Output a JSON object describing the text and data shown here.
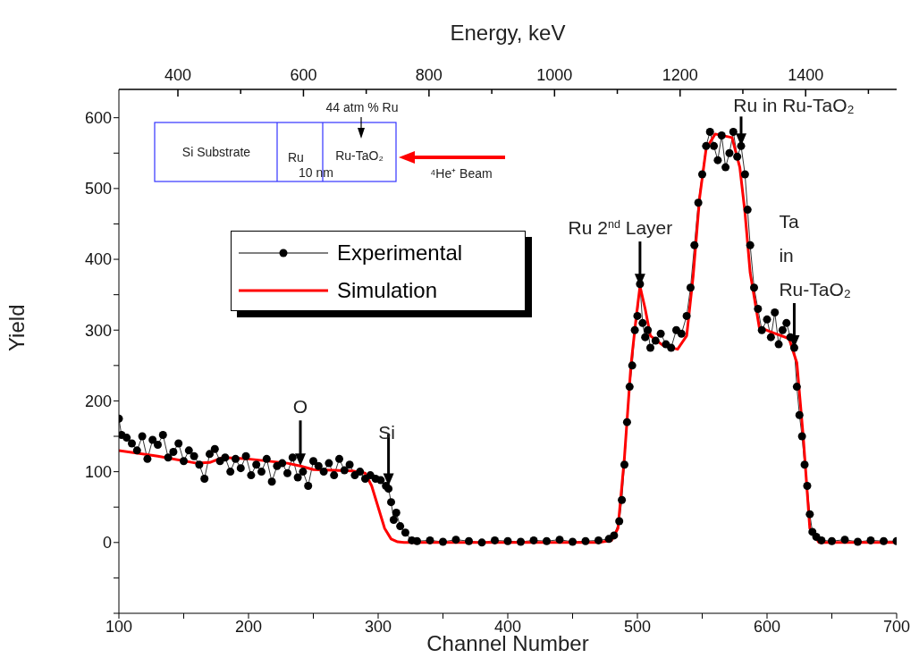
{
  "chart_data": {
    "type": "line",
    "xlabel": "Channel Number",
    "ylabel": "Yield",
    "x2label": "Energy, keV",
    "xlim": [
      100,
      700
    ],
    "xticks": [
      100,
      {
        "value": 150,
        "label": null
      },
      200,
      {
        "value": 250,
        "label": null
      },
      300,
      {
        "value": 350,
        "label": null
      },
      400,
      {
        "value": 450,
        "label": null
      },
      500,
      {
        "value": 550,
        "label": null
      },
      600,
      {
        "value": 650,
        "label": null
      },
      700
    ],
    "ylim": [
      -100,
      640
    ],
    "yticks": [
      {
        "value": -100,
        "label": null
      },
      {
        "value": -50,
        "label": null
      },
      0,
      {
        "value": 50,
        "label": null
      },
      100,
      {
        "value": 150,
        "label": null
      },
      200,
      {
        "value": 250,
        "label": null
      },
      300,
      {
        "value": 350,
        "label": null
      },
      400,
      {
        "value": 450,
        "label": null
      },
      500,
      {
        "value": 550,
        "label": null
      },
      600
    ],
    "x2lim": [
      306,
      1545
    ],
    "x2ticks": [
      400,
      {
        "value": 500,
        "label": null
      },
      600,
      {
        "value": 700,
        "label": null
      },
      800,
      {
        "value": 900,
        "label": null
      },
      1000,
      {
        "value": 1100,
        "label": null
      },
      1200,
      {
        "value": 1300,
        "label": null
      },
      1400,
      {
        "value": 1500,
        "label": null
      }
    ],
    "legend": "top left",
    "series": [
      {
        "name": "Experimental",
        "color": "#000000",
        "marker": "circle",
        "x": [
          100,
          102,
          106,
          110,
          114,
          118,
          122,
          126,
          130,
          134,
          138,
          142,
          146,
          150,
          154,
          158,
          162,
          166,
          170,
          174,
          178,
          182,
          186,
          190,
          194,
          198,
          202,
          206,
          210,
          214,
          218,
          222,
          226,
          230,
          234,
          238,
          242,
          246,
          250,
          254,
          258,
          262,
          266,
          270,
          274,
          278,
          282,
          286,
          290,
          294,
          298,
          302,
          306,
          308,
          310,
          312,
          314,
          317,
          321,
          326,
          330,
          340,
          350,
          360,
          370,
          380,
          390,
          400,
          410,
          420,
          430,
          440,
          450,
          460,
          470,
          478,
          482,
          486,
          488,
          490,
          492,
          494,
          496,
          498,
          500,
          502,
          504,
          506,
          508,
          510,
          514,
          518,
          522,
          526,
          530,
          534,
          538,
          541,
          544,
          547,
          550,
          553,
          556,
          559,
          562,
          565,
          568,
          571,
          574,
          577,
          580,
          583,
          585,
          587,
          590,
          593,
          596,
          600,
          603,
          606,
          609,
          612,
          615,
          618,
          621,
          623,
          625,
          627,
          629,
          631,
          633,
          635,
          638,
          642,
          650,
          660,
          670,
          680,
          690,
          700
        ],
        "values": [
          175,
          152,
          148,
          140,
          130,
          150,
          118,
          145,
          138,
          152,
          120,
          128,
          140,
          115,
          130,
          122,
          110,
          90,
          125,
          132,
          115,
          120,
          100,
          118,
          105,
          122,
          95,
          110,
          100,
          118,
          86,
          108,
          112,
          98,
          120,
          92,
          100,
          80,
          115,
          108,
          100,
          112,
          95,
          118,
          102,
          110,
          95,
          100,
          90,
          95,
          90,
          88,
          80,
          76,
          57,
          32,
          42,
          23,
          14,
          3,
          2,
          3,
          1,
          4,
          2,
          0,
          3,
          2,
          1,
          3,
          2,
          4,
          1,
          2,
          3,
          5,
          10,
          30,
          60,
          110,
          170,
          220,
          250,
          300,
          320,
          365,
          310,
          290,
          300,
          275,
          285,
          295,
          280,
          275,
          300,
          295,
          320,
          360,
          420,
          480,
          520,
          560,
          580,
          560,
          540,
          575,
          530,
          550,
          580,
          545,
          560,
          520,
          470,
          420,
          360,
          330,
          300,
          315,
          290,
          325,
          280,
          300,
          310,
          290,
          275,
          220,
          180,
          150,
          110,
          80,
          40,
          15,
          8,
          3,
          2,
          4,
          1,
          3,
          2,
          2
        ]
      },
      {
        "name": "Simulation",
        "color": "#ff0000",
        "marker": "none",
        "x": [
          100,
          130,
          160,
          170,
          180,
          200,
          230,
          240,
          250,
          280,
          290,
          295,
          300,
          305,
          310,
          315,
          320,
          400,
          470,
          480,
          485,
          490,
          495,
          499,
          502,
          506,
          510,
          520,
          531,
          538,
          543,
          548,
          553,
          560,
          573,
          579,
          583,
          587,
          594,
          605,
          617,
          623,
          628,
          633,
          640,
          700
        ],
        "values": [
          130,
          122,
          112,
          113,
          120,
          118,
          112,
          108,
          103,
          101,
          98,
          80,
          50,
          20,
          5,
          1,
          0,
          0,
          0,
          3,
          20,
          120,
          250,
          317,
          362,
          330,
          292,
          278,
          273,
          292,
          376,
          487,
          556,
          577,
          572,
          530,
          466,
          381,
          304,
          296,
          288,
          254,
          148,
          20,
          0,
          0
        ]
      }
    ],
    "annotations": [
      {
        "text": "O",
        "x": 240,
        "y": 108
      },
      {
        "text": "Si",
        "x": 308,
        "y": 80
      },
      {
        "text": "Ru 2$^{nd}$ Layer",
        "x": 502,
        "y": 362
      },
      {
        "text": "Ru in Ru-TaO₂",
        "x": 580,
        "y": 560
      },
      {
        "text": "Ta\nin\nRu-TaO₂",
        "x": 621,
        "y": 275
      },
      "44 atm % Ru",
      "Si Substrate",
      "Ru\n10 nm",
      "Ru-TaO₂",
      "⁴He⁺ Beam"
    ]
  }
}
